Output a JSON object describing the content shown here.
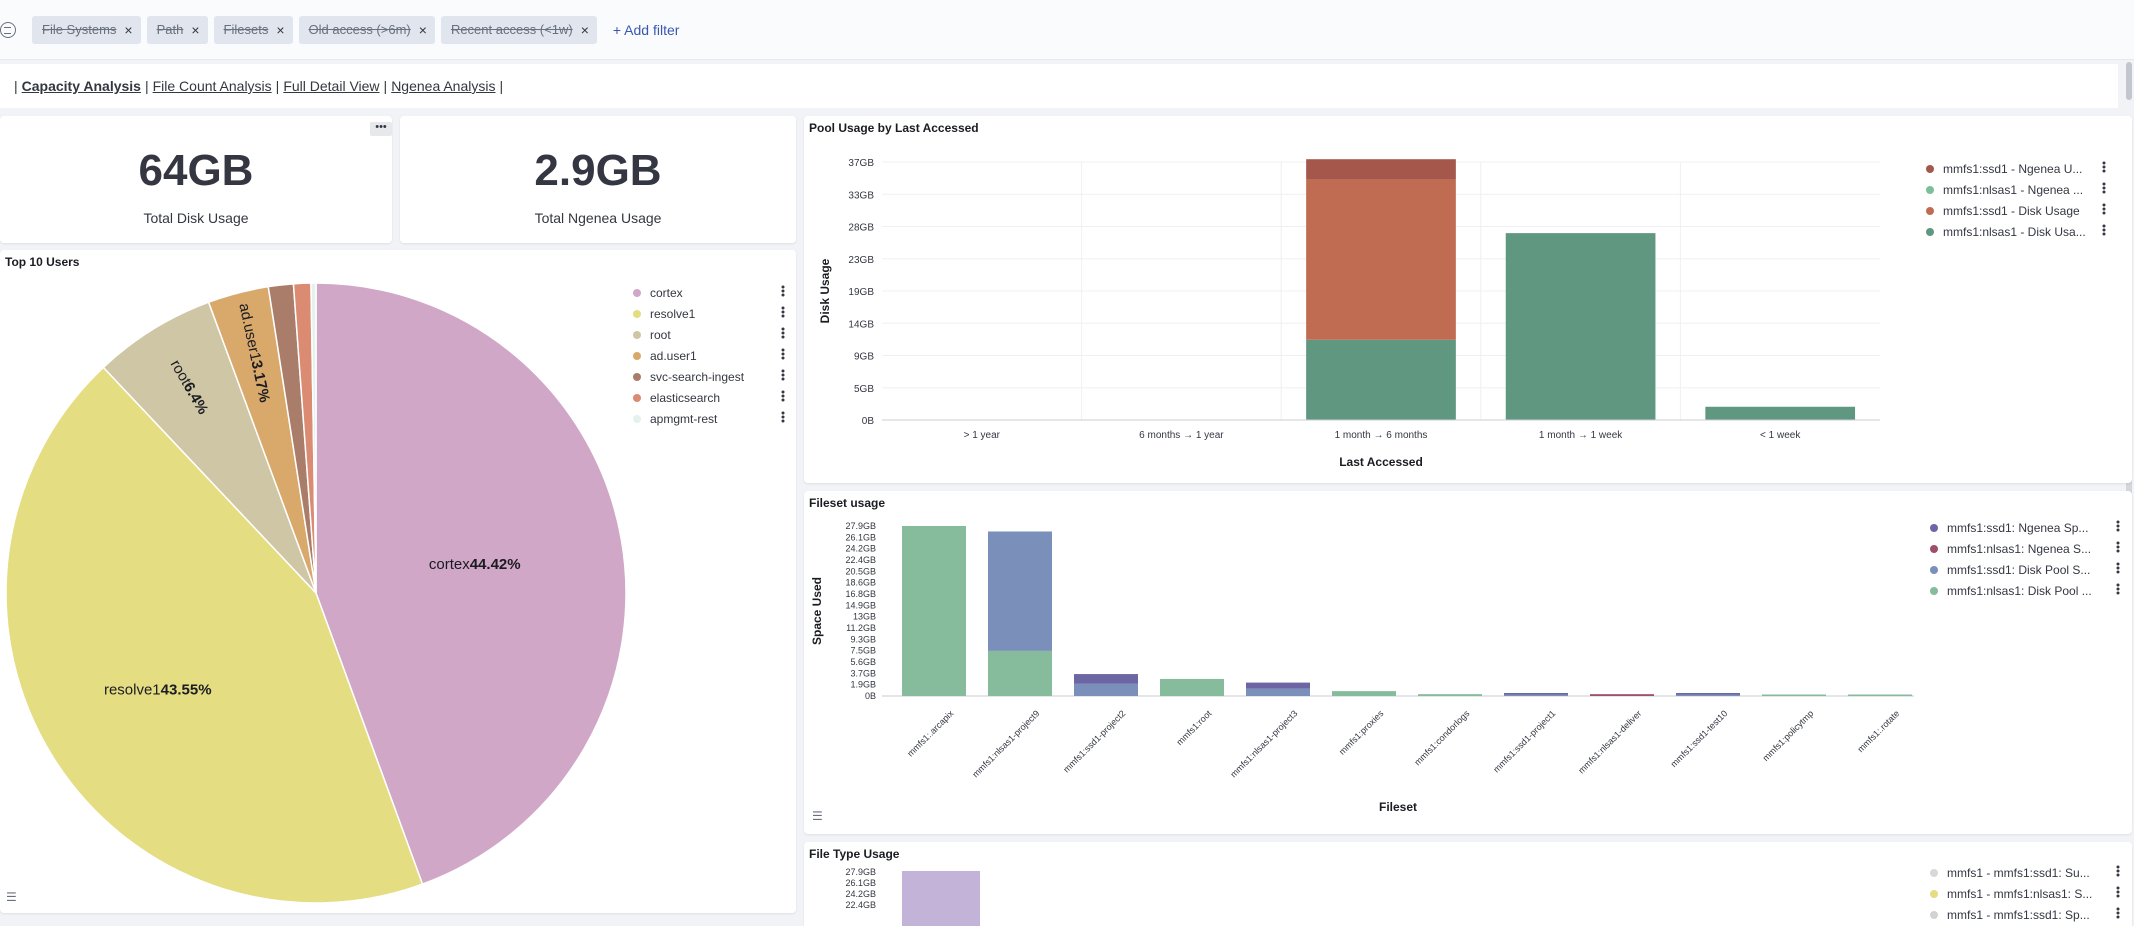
{
  "filters": {
    "pills": [
      {
        "label": "File Systems"
      },
      {
        "label": "Path"
      },
      {
        "label": "Filesets"
      },
      {
        "label": "Old access (>6m)"
      },
      {
        "label": "Recent access (<1w)"
      }
    ],
    "add_filter_label": "+ Add filter"
  },
  "tabs": {
    "items": [
      {
        "label": "Capacity Analysis",
        "active": true
      },
      {
        "label": "File Count Analysis",
        "active": false
      },
      {
        "label": "Full Detail View",
        "active": false
      },
      {
        "label": "Ngenea Analysis",
        "active": false
      }
    ],
    "separator": "|"
  },
  "metrics": {
    "disk": {
      "value": "64GB",
      "label": "Total Disk Usage"
    },
    "ngenea": {
      "value": "2.9GB",
      "label": "Total Ngenea Usage"
    }
  },
  "top_users": {
    "title": "Top 10 Users",
    "slice_labels": [
      {
        "name": "cortex",
        "pct": "44.42%"
      },
      {
        "name": "resolve1",
        "pct": "43.55%"
      },
      {
        "name": "root",
        "pct": "6.4%"
      },
      {
        "name": "ad.user1",
        "pct": "3.17%"
      }
    ],
    "legend": [
      "cortex",
      "resolve1",
      "root",
      "ad.user1",
      "svc-search-ingest",
      "elasticsearch",
      "apmgmt-rest"
    ]
  },
  "pool_usage": {
    "title": "Pool Usage by Last Accessed",
    "legend": [
      "mmfs1:ssd1 - Ngenea U...",
      "mmfs1:nlsas1 - Ngenea ...",
      "mmfs1:ssd1 - Disk Usage",
      "mmfs1:nlsas1 - Disk Usa..."
    ],
    "y_ticks": [
      "37GB",
      "33GB",
      "28GB",
      "23GB",
      "19GB",
      "14GB",
      "9GB",
      "5GB",
      "0B"
    ]
  },
  "fileset_usage": {
    "title": "Fileset usage",
    "legend": [
      "mmfs1:ssd1: Ngenea Sp...",
      "mmfs1:nlsas1: Ngenea S...",
      "mmfs1:ssd1: Disk Pool S...",
      "mmfs1:nlsas1: Disk Pool ..."
    ],
    "y_ticks": [
      "27.9GB",
      "26.1GB",
      "24.2GB",
      "22.4GB",
      "20.5GB",
      "18.6GB",
      "16.8GB",
      "14.9GB",
      "13GB",
      "11.2GB",
      "9.3GB",
      "7.5GB",
      "5.6GB",
      "3.7GB",
      "1.9GB",
      "0B"
    ]
  },
  "file_type_usage": {
    "title": "File Type Usage",
    "legend": [
      "mmfs1 - mmfs1:ssd1: Su...",
      "mmfs1 - mmfs1:nlsas1: S...",
      "mmfs1 - mmfs1:ssd1: Sp..."
    ],
    "y_ticks": [
      "27.9GB",
      "26.1GB",
      "24.2GB",
      "22.4GB"
    ]
  },
  "colors": {
    "cortex": "#d0a7c6",
    "resolve1": "#e4dd82",
    "root": "#cfc6a6",
    "ad_user1": "#d9a86b",
    "svc": "#a97d6a",
    "elasticsearch": "#da8b71",
    "apmgmt": "#e4f1ec",
    "ssd1_ngenea": "#a6574b",
    "nlsas1_ngenea": "#7bbf9c",
    "ssd1_disk": "#c06c53",
    "nlsas1_disk": "#609780",
    "fs_ssd_ngenea": "#6c66a4",
    "fs_nlsas_ngenea": "#9f4f68",
    "fs_ssd_disk": "#7b8fbb",
    "fs_nlsas_disk": "#86bb9b",
    "ft_violet": "#c3b3d8"
  },
  "chart_data": [
    {
      "type": "pie",
      "title": "Top 10 Users",
      "labels": [
        "cortex",
        "resolve1",
        "root",
        "ad.user1",
        "svc-search-ingest",
        "elasticsearch",
        "apmgmt-rest"
      ],
      "values": [
        44.42,
        43.55,
        6.4,
        3.17,
        1.3,
        0.9,
        0.26
      ],
      "legend": "right"
    },
    {
      "type": "bar",
      "title": "Pool Usage by Last Accessed",
      "xlabel": "Last Accessed",
      "ylabel": "Disk Usage",
      "categories": [
        "> 1 year",
        "6 months → 1 year",
        "1 month → 6 months",
        "1 month → 1 week",
        "< 1 week"
      ],
      "stacked": true,
      "ylim": [
        0,
        37
      ],
      "series": [
        {
          "name": "mmfs1:nlsas1 - Disk Usa...",
          "values": [
            0,
            0,
            11.5,
            26.8,
            1.9
          ]
        },
        {
          "name": "mmfs1:ssd1 - Disk Usage",
          "values": [
            0,
            0,
            23,
            0,
            0
          ]
        },
        {
          "name": "mmfs1:nlsas1 - Ngenea ...",
          "values": [
            0,
            0,
            0,
            0,
            0
          ]
        },
        {
          "name": "mmfs1:ssd1 - Ngenea U...",
          "values": [
            0,
            0,
            2.9,
            0,
            0
          ]
        }
      ],
      "legend": "right"
    },
    {
      "type": "bar",
      "title": "Fileset usage",
      "xlabel": "Fileset",
      "ylabel": "Space Used",
      "categories": [
        "mmfs1:.arcapix",
        "mmfs1:nlsas1-project9",
        "mmfs1:ssd1-project2",
        "mmfs1:root",
        "mmfs1:nlsas1-project3",
        "mmfs1:proxies",
        "mmfs1:condorlogs",
        "mmfs1:ssd1-project1",
        "mmfs1:nlsas1-deliver",
        "mmfs1:ssd1-test10",
        "mmfs1:policytmp",
        "mmfs1:.rotate"
      ],
      "stacked": true,
      "ylim": [
        0,
        27.9
      ],
      "series": [
        {
          "name": "mmfs1:nlsas1: Disk Pool ...",
          "values": [
            27.9,
            7.4,
            0,
            2.8,
            0,
            0.8,
            0.3,
            0,
            0,
            0,
            0.2,
            0.2
          ]
        },
        {
          "name": "mmfs1:ssd1: Disk Pool S...",
          "values": [
            0,
            19.6,
            2.0,
            0,
            1.2,
            0,
            0,
            0.15,
            0,
            0.2,
            0,
            0
          ]
        },
        {
          "name": "mmfs1:nlsas1: Ngenea S...",
          "values": [
            0,
            0,
            0,
            0,
            0,
            0,
            0,
            0,
            0.3,
            0,
            0,
            0
          ]
        },
        {
          "name": "mmfs1:ssd1: Ngenea Sp...",
          "values": [
            0,
            0,
            1.6,
            0,
            1.0,
            0,
            0,
            0.2,
            0,
            0.1,
            0,
            0
          ]
        }
      ],
      "legend": "right"
    },
    {
      "type": "bar",
      "title": "File Type Usage",
      "ylim_visible": [
        22.4,
        27.9
      ],
      "legend": "right"
    }
  ]
}
